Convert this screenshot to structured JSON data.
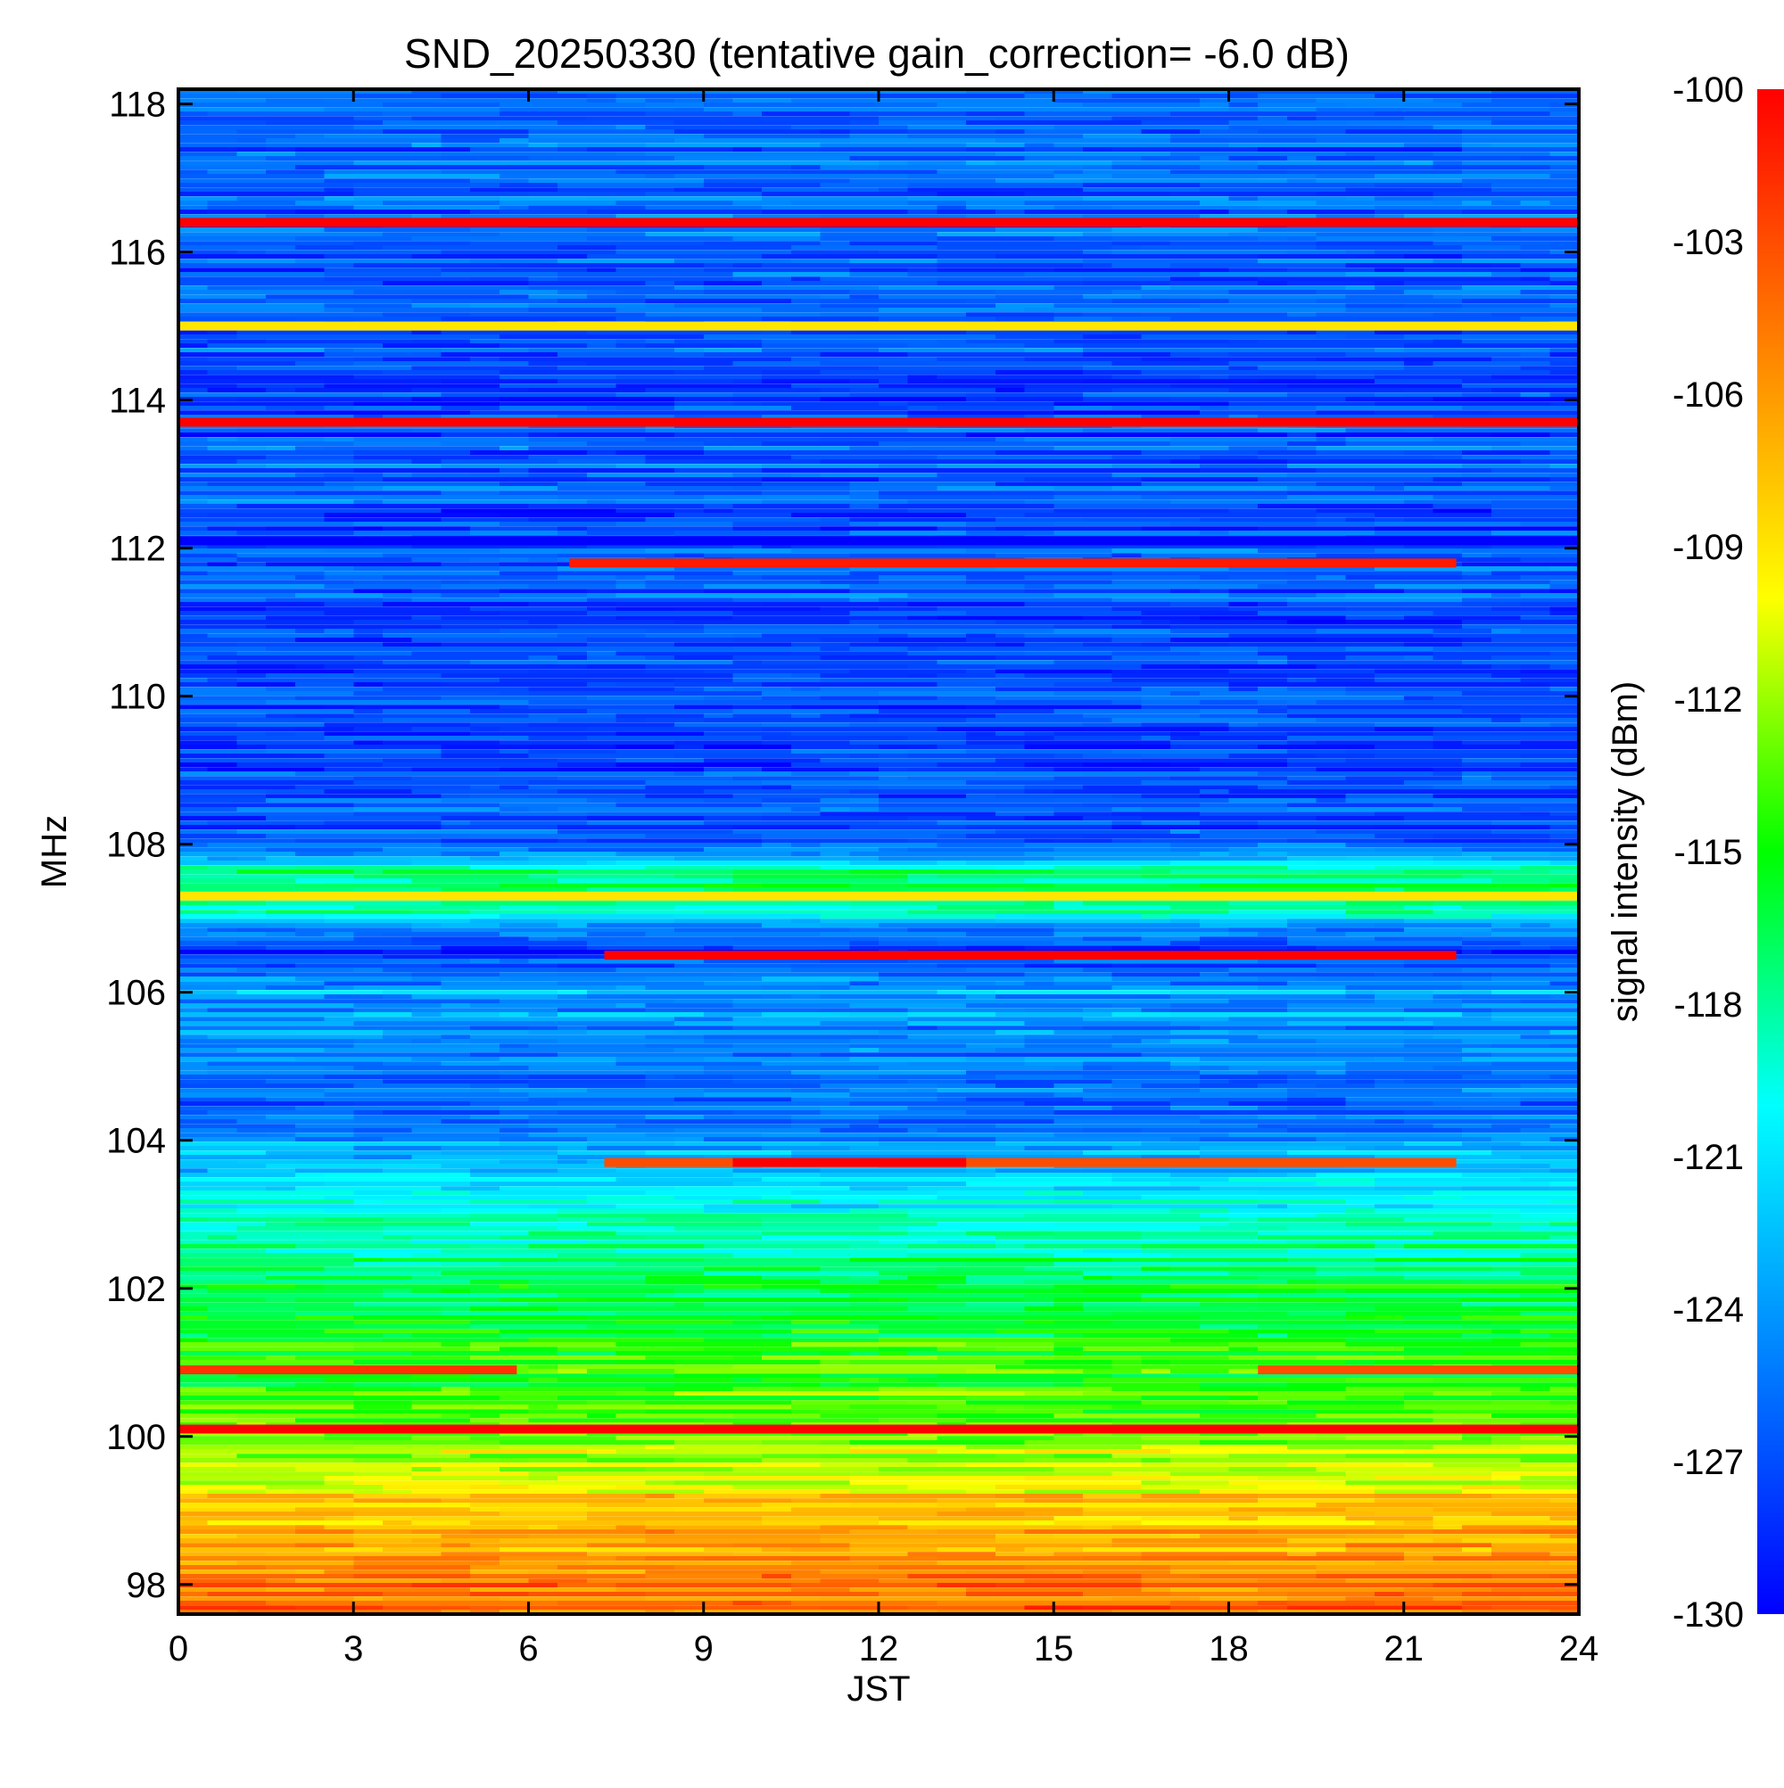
{
  "chart_data": {
    "type": "heatmap",
    "title": "SND_20250330 (tentative gain_correction= -6.0 dB)",
    "xlabel": "JST",
    "ylabel": "MHz",
    "colorbar_label": "signal intensity (dBm)",
    "xlim": [
      0,
      24
    ],
    "ylim": [
      97.6,
      118.2
    ],
    "color_range": [
      -130,
      -100
    ],
    "colormap": [
      "#0000ff",
      "#0080ff",
      "#00ffff",
      "#00ff00",
      "#ffff00",
      "#ff8000",
      "#ff0000"
    ],
    "x_ticks": [
      "0",
      "3",
      "6",
      "9",
      "12",
      "15",
      "18",
      "21",
      "24"
    ],
    "x_tick_values": [
      0,
      3,
      6,
      9,
      12,
      15,
      18,
      21,
      24
    ],
    "y_ticks": [
      "98",
      "100",
      "102",
      "104",
      "106",
      "108",
      "110",
      "112",
      "114",
      "116",
      "118"
    ],
    "y_tick_values": [
      98,
      100,
      102,
      104,
      106,
      108,
      110,
      112,
      114,
      116,
      118
    ],
    "colorbar_ticks": [
      "-100",
      "-103",
      "-106",
      "-109",
      "-112",
      "-115",
      "-118",
      "-121",
      "-124",
      "-127",
      "-130"
    ],
    "colorbar_tick_values": [
      -100,
      -103,
      -106,
      -109,
      -112,
      -115,
      -118,
      -121,
      -124,
      -127,
      -130
    ],
    "background_profile": [
      {
        "freq": 97.6,
        "dbm": -104
      },
      {
        "freq": 98.5,
        "dbm": -106
      },
      {
        "freq": 99.5,
        "dbm": -110
      },
      {
        "freq": 100.5,
        "dbm": -114
      },
      {
        "freq": 101.5,
        "dbm": -115.5
      },
      {
        "freq": 102.5,
        "dbm": -118
      },
      {
        "freq": 103.5,
        "dbm": -121
      },
      {
        "freq": 104.3,
        "dbm": -125
      },
      {
        "freq": 105.0,
        "dbm": -126
      },
      {
        "freq": 106.0,
        "dbm": -123
      },
      {
        "freq": 106.6,
        "dbm": -129
      },
      {
        "freq": 107.0,
        "dbm": -120
      },
      {
        "freq": 107.6,
        "dbm": -117
      },
      {
        "freq": 108.0,
        "dbm": -127
      },
      {
        "freq": 110.0,
        "dbm": -127
      },
      {
        "freq": 112.0,
        "dbm": -126.5
      },
      {
        "freq": 114.0,
        "dbm": -127
      },
      {
        "freq": 116.0,
        "dbm": -126.5
      },
      {
        "freq": 118.2,
        "dbm": -126
      }
    ],
    "signals": [
      {
        "freq": 116.4,
        "t_start": 0,
        "t_end": 24,
        "dbm": -100
      },
      {
        "freq": 115.0,
        "t_start": 0,
        "t_end": 24,
        "dbm": -109
      },
      {
        "freq": 113.7,
        "t_start": 0,
        "t_end": 24,
        "dbm": -100
      },
      {
        "freq": 112.1,
        "t_start": 0,
        "t_end": 24,
        "dbm": -130
      },
      {
        "freq": 111.8,
        "t_start": 6.7,
        "t_end": 21.9,
        "dbm": -101
      },
      {
        "freq": 107.3,
        "t_start": 0,
        "t_end": 24,
        "dbm": -109
      },
      {
        "freq": 106.5,
        "t_start": 7.3,
        "t_end": 21.9,
        "dbm": -100
      },
      {
        "freq": 103.7,
        "t_start": 7.3,
        "t_end": 21.9,
        "dbm": -103
      },
      {
        "freq": 103.7,
        "t_start": 9.5,
        "t_end": 13.5,
        "dbm": -100
      },
      {
        "freq": 100.9,
        "t_start": 0,
        "t_end": 5.8,
        "dbm": -102
      },
      {
        "freq": 100.9,
        "t_start": 18.5,
        "t_end": 24,
        "dbm": -103
      },
      {
        "freq": 100.1,
        "t_start": 0,
        "t_end": 24,
        "dbm": -100
      }
    ]
  }
}
